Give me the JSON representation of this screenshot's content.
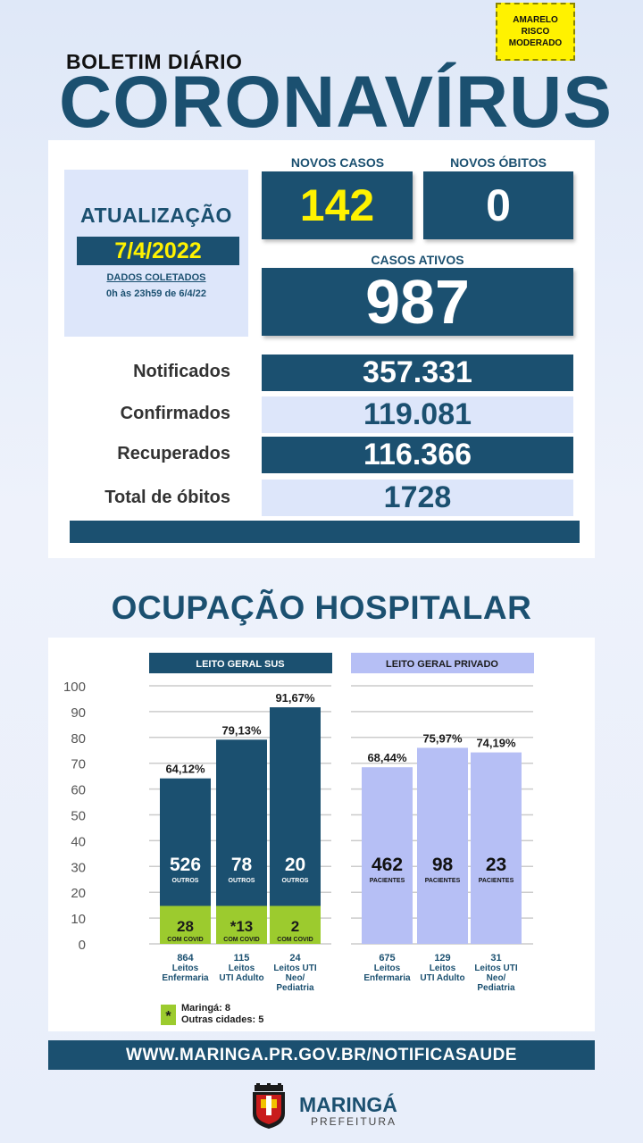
{
  "risk_badge": {
    "line1": "AMARELO",
    "line2": "RISCO",
    "line3": "MODERADO",
    "color": "#fff200"
  },
  "header": {
    "subtitle": "BOLETIM DIÁRIO",
    "title": "CORONAVÍRUS"
  },
  "update": {
    "label": "ATUALIZAÇÃO",
    "date": "7/4/2022",
    "collected_label": "DADOS COLETADOS",
    "collected_range": "0h às 23h59 de 6/4/22"
  },
  "new_cases": {
    "label": "NOVOS CASOS",
    "value": "142"
  },
  "new_deaths": {
    "label": "NOVOS ÓBITOS",
    "value": "0"
  },
  "active_cases": {
    "label": "CASOS ATIVOS",
    "value": "987"
  },
  "stats": [
    {
      "label": "Notificados",
      "value": "357.331"
    },
    {
      "label": "Confirmados",
      "value": "119.081"
    },
    {
      "label": "Recuperados",
      "value": "116.366"
    },
    {
      "label": "Total de óbitos",
      "value": "1728"
    }
  ],
  "hospital_title": "OCUPAÇÃO HOSPITALAR",
  "colors": {
    "dark_blue": "#1b5070",
    "covid_green": "#9ccb2e",
    "private_lavender": "#b6bff5",
    "yellow": "#fff200"
  },
  "chart_data": {
    "type": "bar",
    "ylim": [
      0,
      100
    ],
    "yticks": [
      "100",
      "90",
      "80",
      "70",
      "60",
      "50",
      "40",
      "30",
      "20",
      "10",
      "0"
    ],
    "groups": [
      {
        "title": "LEITO GERAL SUS",
        "bars": [
          {
            "pct": 64.12,
            "pct_label": "64,12%",
            "covid": 28,
            "covid_label": "28",
            "covid_sub": "COM COVID",
            "others": 526,
            "others_label": "526",
            "others_sub": "OUTROS",
            "total": "864",
            "cat1": "Leitos",
            "cat2": "Enfermaria",
            "cat3": ""
          },
          {
            "pct": 79.13,
            "pct_label": "79,13%",
            "covid": 13,
            "covid_label": "*13",
            "covid_sub": "COM COVID",
            "others": 78,
            "others_label": "78",
            "others_sub": "OUTROS",
            "total": "115",
            "cat1": "Leitos",
            "cat2": "UTI Adulto",
            "cat3": ""
          },
          {
            "pct": 91.67,
            "pct_label": "91,67%",
            "covid": 2,
            "covid_label": "2",
            "covid_sub": "COM COVID",
            "others": 20,
            "others_label": "20",
            "others_sub": "OUTROS",
            "total": "24",
            "cat1": "Leitos UTI",
            "cat2": "Neo/",
            "cat3": "Pediatria"
          }
        ]
      },
      {
        "title": "LEITO GERAL PRIVADO",
        "bars": [
          {
            "pct": 68.44,
            "pct_label": "68,44%",
            "patients": 462,
            "patients_label": "462",
            "patients_sub": "PACIENTES",
            "total": "675",
            "cat1": "Leitos",
            "cat2": "Enfermaria",
            "cat3": ""
          },
          {
            "pct": 75.97,
            "pct_label": "75,97%",
            "patients": 98,
            "patients_label": "98",
            "patients_sub": "PACIENTES",
            "total": "129",
            "cat1": "Leitos",
            "cat2": "UTI Adulto",
            "cat3": ""
          },
          {
            "pct": 74.19,
            "pct_label": "74,19%",
            "patients": 23,
            "patients_label": "23",
            "patients_sub": "PACIENTES",
            "total": "31",
            "cat1": "Leitos UTI",
            "cat2": "Neo/",
            "cat3": "Pediatria"
          }
        ]
      }
    ],
    "footnote": {
      "line1": "Maringá: 8",
      "line2": "Outras cidades: 5",
      "marker": "*"
    }
  },
  "url": "WWW.MARINGA.PR.GOV.BR/NOTIFICASAUDE",
  "footer": {
    "name": "MARINGÁ",
    "sub": "PREFEITURA"
  }
}
